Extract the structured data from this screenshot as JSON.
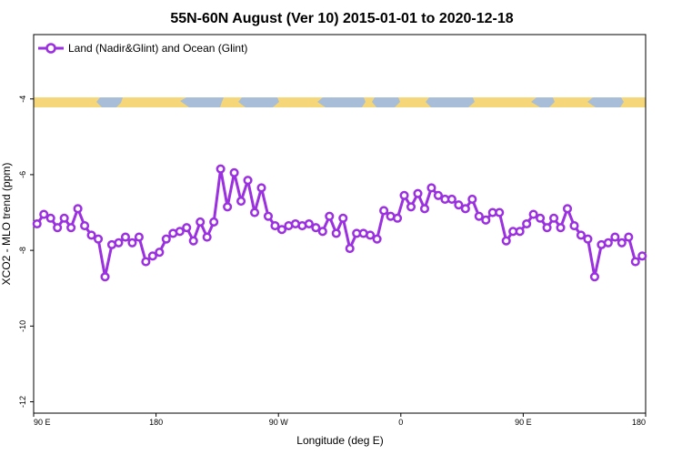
{
  "chart_data": {
    "type": "line",
    "title": "55N-60N August (Ver 10)   2015-01-01 to 2020-12-18",
    "xlabel": "Longitude (deg E)",
    "ylabel": "XCO2 - MLO trend (ppm)",
    "x_tick_labels": [
      "90 E",
      "180",
      "90 W",
      "0",
      "90 E",
      "180"
    ],
    "y_tick_labels": [
      "-4",
      "-6",
      "-8",
      "-10",
      "-12"
    ],
    "y_ticks": [
      -4,
      -6,
      -8,
      -10,
      -12
    ],
    "ylim": [
      -12.3,
      -2.3
    ],
    "x_tick_positions": [
      0,
      90,
      180,
      270,
      360,
      450
    ],
    "xlim": [
      0,
      450
    ],
    "grid": false,
    "legend_position": "top-left",
    "land_ocean_band_y": -4.2,
    "series": [
      {
        "name": "Land (Nadir&Glint) and Ocean (Glint)",
        "color": "#9b30e0",
        "x": [
          2.5,
          7.5,
          12.5,
          17.5,
          22.5,
          27.5,
          32.5,
          37.5,
          42.5,
          47.5,
          52.5,
          57.5,
          62.5,
          67.5,
          72.5,
          77.5,
          82.5,
          87.5,
          92.5,
          97.5,
          102.5,
          107.5,
          112.5,
          117.5,
          122.5,
          127.5,
          132.5,
          137.5,
          142.5,
          147.5,
          152.5,
          157.5,
          162.5,
          167.5,
          172.5,
          177.5,
          182.5,
          187.5,
          192.5,
          197.5,
          202.5,
          207.5,
          212.5,
          217.5,
          222.5,
          227.5,
          232.5,
          237.5,
          242.5,
          247.5,
          252.5,
          257.5,
          262.5,
          267.5,
          272.5,
          277.5,
          282.5,
          287.5,
          292.5,
          297.5,
          302.5,
          307.5,
          312.5,
          317.5,
          322.5,
          327.5,
          332.5,
          337.5,
          342.5,
          347.5,
          352.5,
          357.5,
          362.5,
          367.5,
          372.5,
          377.5,
          382.5,
          387.5,
          392.5,
          397.5,
          402.5,
          407.5,
          412.5,
          417.5,
          422.5,
          427.5,
          432.5,
          437.5,
          442.5,
          447.5
        ],
        "values": [
          -7.3,
          -7.05,
          -7.15,
          -7.4,
          -7.15,
          -7.4,
          -6.9,
          -7.35,
          -7.6,
          -7.7,
          -8.7,
          -7.85,
          -7.8,
          -7.65,
          -7.8,
          -7.65,
          -8.3,
          -8.15,
          -8.05,
          -7.7,
          -7.55,
          -7.5,
          -7.4,
          -7.75,
          -7.25,
          -7.65,
          -7.25,
          -5.85,
          -6.85,
          -5.95,
          -6.7,
          -6.15,
          -7.0,
          -6.35,
          -7.1,
          -7.35,
          -7.45,
          -7.35,
          -7.3,
          -7.35,
          -7.3,
          -7.4,
          -7.5,
          -7.1,
          -7.55,
          -7.15,
          -7.95,
          -7.55,
          -7.55,
          -7.6,
          -7.7,
          -6.95,
          -7.1,
          -7.15,
          -6.55,
          -6.85,
          -6.5,
          -6.9,
          -6.35,
          -6.55,
          -6.65,
          -6.65,
          -6.8,
          -6.9,
          -6.65,
          -7.1,
          -7.2,
          -7.0,
          -7.0,
          -7.75,
          -7.5,
          -7.5,
          -7.3,
          -7.05,
          -7.15,
          -7.4,
          -7.15,
          -7.4,
          -6.9,
          -7.35,
          -7.6,
          -7.7,
          -8.7,
          -7.85,
          -7.8,
          -7.65,
          -7.8,
          -7.65,
          -8.3,
          -8.15
        ]
      }
    ]
  }
}
